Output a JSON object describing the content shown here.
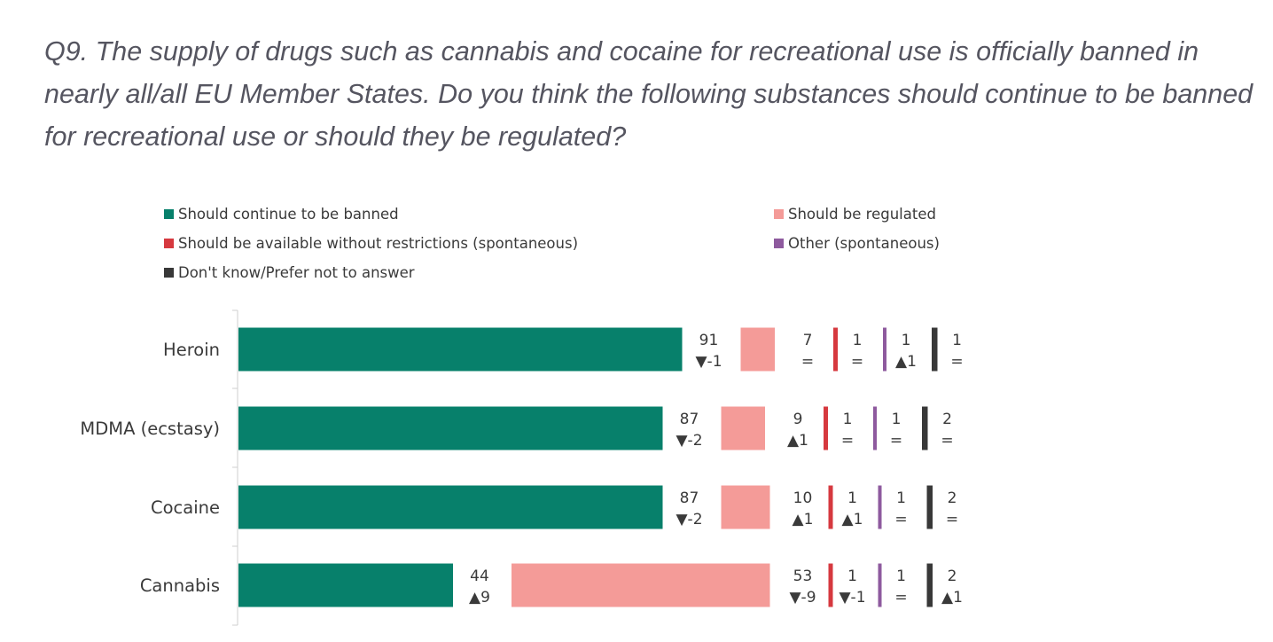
{
  "question": "Q9. The supply of drugs such as cannabis and cocaine for recreational use is officially banned in nearly all/all EU Member States. Do you think the following substances should continue to be banned for recreational use or should they be regulated?",
  "chart_data": {
    "type": "bar",
    "orientation": "horizontal",
    "stacked": "separated-segments",
    "categories": [
      "Heroin",
      "MDMA (ecstasy)",
      "Cocaine",
      "Cannabis"
    ],
    "series": [
      {
        "name": "Should continue to be banned",
        "color": "#07806B",
        "values": [
          91,
          87,
          87,
          44
        ],
        "changes": [
          "▼-1",
          "▼-2",
          "▼-2",
          "▲9"
        ]
      },
      {
        "name": "Should be regulated",
        "color": "#F49B98",
        "values": [
          7,
          9,
          10,
          53
        ],
        "changes": [
          "=",
          "▲1",
          "▲1",
          "▼-9"
        ]
      },
      {
        "name": "Should be available without restrictions (spontaneous)",
        "color": "#D6393F",
        "values": [
          1,
          1,
          1,
          1
        ],
        "changes": [
          "=",
          "=",
          "▲1",
          "▼-1"
        ]
      },
      {
        "name": "Other (spontaneous)",
        "color": "#8E5A9E",
        "values": [
          1,
          1,
          1,
          1
        ],
        "changes": [
          "▲1",
          "=",
          "=",
          "="
        ]
      },
      {
        "name": "Don't know/Prefer not to answer",
        "color": "#383838",
        "values": [
          1,
          2,
          2,
          2
        ],
        "changes": [
          "=",
          "=",
          "=",
          "▲1"
        ]
      }
    ]
  }
}
